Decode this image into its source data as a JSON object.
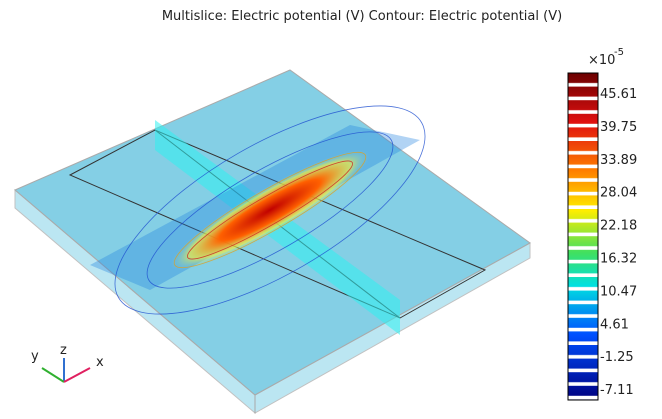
{
  "title": "Multislice: Electric potential (V)  Contour: Electric potential (V)",
  "colorbar": {
    "multiplier": "×10",
    "exponent": "-5",
    "ticks": [
      45.61,
      39.75,
      33.89,
      28.04,
      22.18,
      16.32,
      10.47,
      4.61,
      -1.25,
      -7.11
    ]
  },
  "axes_triad": {
    "y": "y",
    "z": "z",
    "x": "x"
  }
}
